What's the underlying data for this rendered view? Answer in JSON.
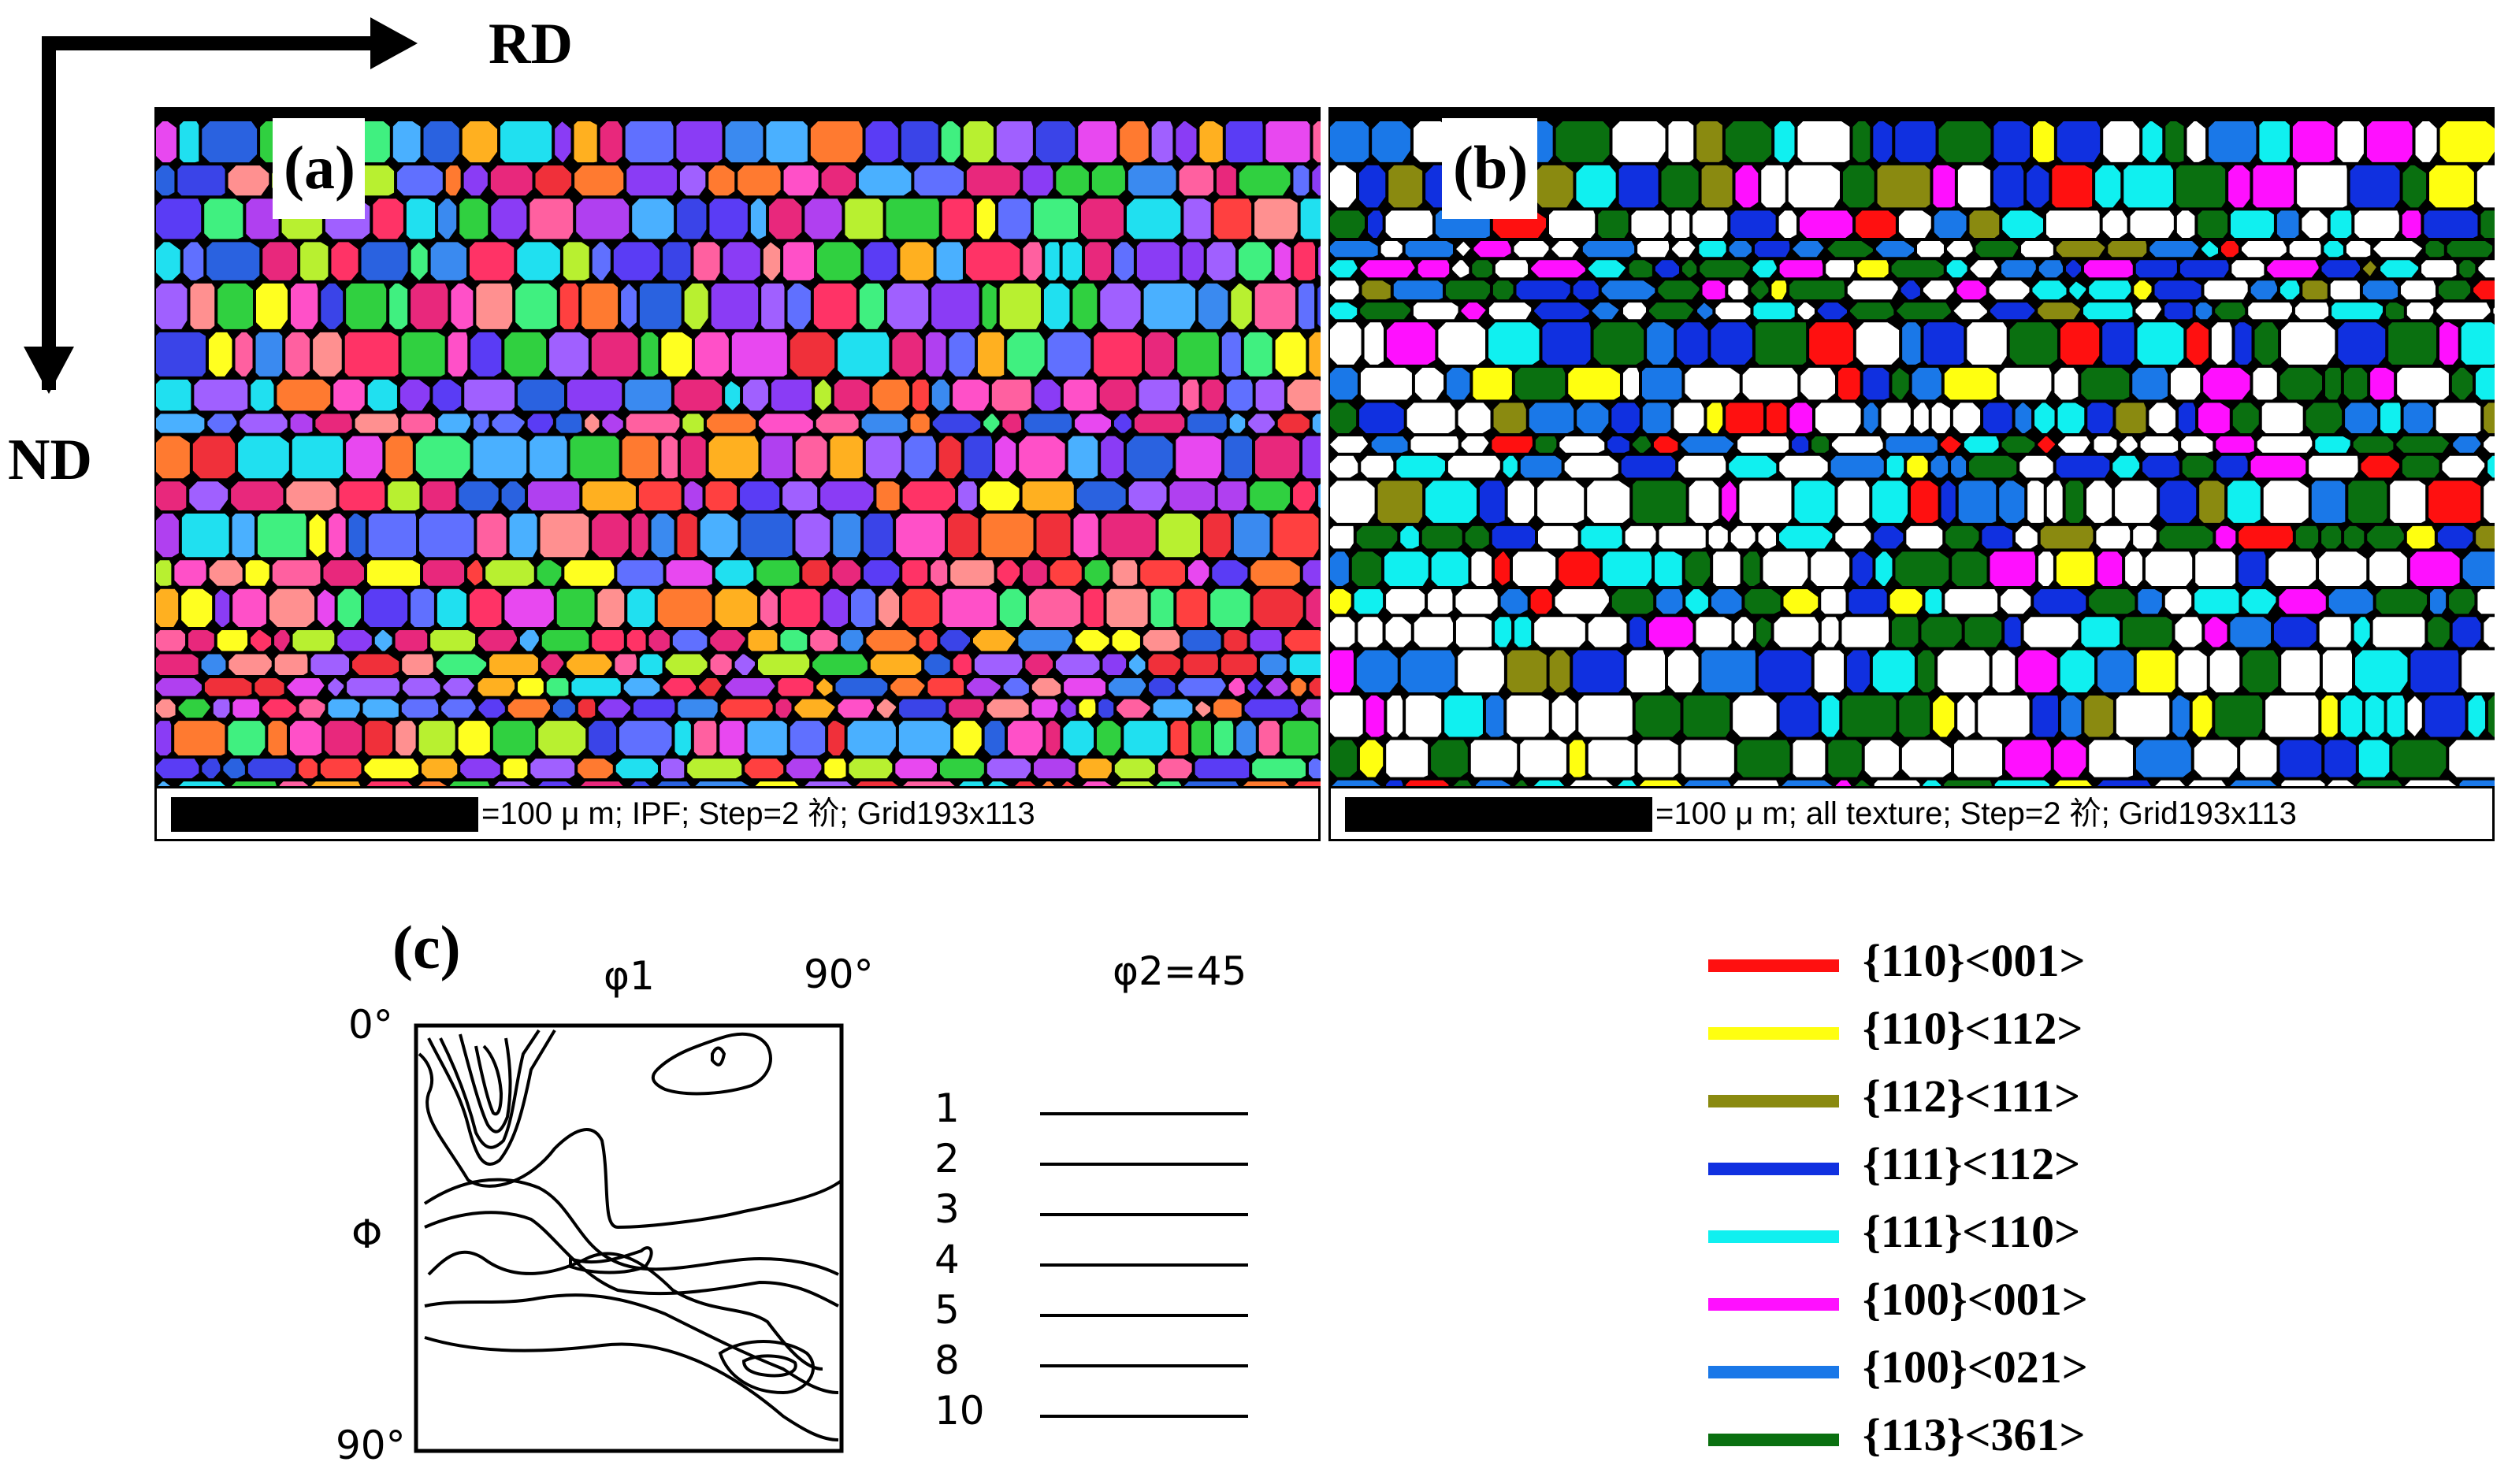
{
  "axes": {
    "rd": "RD",
    "nd": "ND"
  },
  "panel_a": {
    "tag": "(a)",
    "caption": "=100 μ m; IPF; Step=2 祄; Grid193x113",
    "palette": [
      "#f0303a",
      "#ff3366",
      "#e8287c",
      "#ff50c8",
      "#e848f0",
      "#b040f0",
      "#8a3cf5",
      "#5a3cf5",
      "#3a44e8",
      "#2a62e0",
      "#3a8af0",
      "#4ab0ff",
      "#20e0f0",
      "#40f080",
      "#30d040",
      "#b8f030",
      "#ffff20",
      "#ffb020",
      "#ff7a30",
      "#ff9090",
      "#ff60a0",
      "#a060ff",
      "#6070ff",
      "#ff4040"
    ]
  },
  "panel_b": {
    "tag": "(b)",
    "caption": "=100 μ m; all texture; Step=2 祄; Grid193x113",
    "palette": [
      "#ffffff",
      "#ffffff",
      "#ffffff",
      "#ffffff",
      "#ffffff",
      "#ffffff",
      "#ffffff",
      "#ffffff",
      "#ffffff",
      "#ffffff",
      "#0a7010",
      "#0a7010",
      "#0a7010",
      "#0a7010",
      "#0a7010",
      "#1030e0",
      "#1030e0",
      "#1030e0",
      "#10f0f0",
      "#10f0f0",
      "#10f0f0",
      "#1a78e8",
      "#1a78e8",
      "#1a78e8",
      "#ff10ff",
      "#ff10ff",
      "#ffff10",
      "#8a8a10",
      "#ff1010"
    ]
  },
  "panel_c": {
    "tag": "(c)",
    "phi1": "φ1",
    "top_right": "90°",
    "top_left": "0°",
    "bottom_left": "90°",
    "Phi": "Φ",
    "phi2": "φ2=45",
    "levels": [
      "1",
      "2",
      "3",
      "4",
      "5",
      "8",
      "10"
    ]
  },
  "legend": [
    {
      "label": "{110}<001>",
      "color": "#ff1010"
    },
    {
      "label": "{110}<112>",
      "color": "#ffff10"
    },
    {
      "label": "{112}<111>",
      "color": "#8a8a10"
    },
    {
      "label": "{111}<112>",
      "color": "#1030e0"
    },
    {
      "label": "{111}<110>",
      "color": "#10f0f0"
    },
    {
      "label": "{100}<001>",
      "color": "#ff10ff"
    },
    {
      "label": "{100}<021>",
      "color": "#1a78e8"
    },
    {
      "label": "{113}<361>",
      "color": "#0a7010"
    }
  ]
}
